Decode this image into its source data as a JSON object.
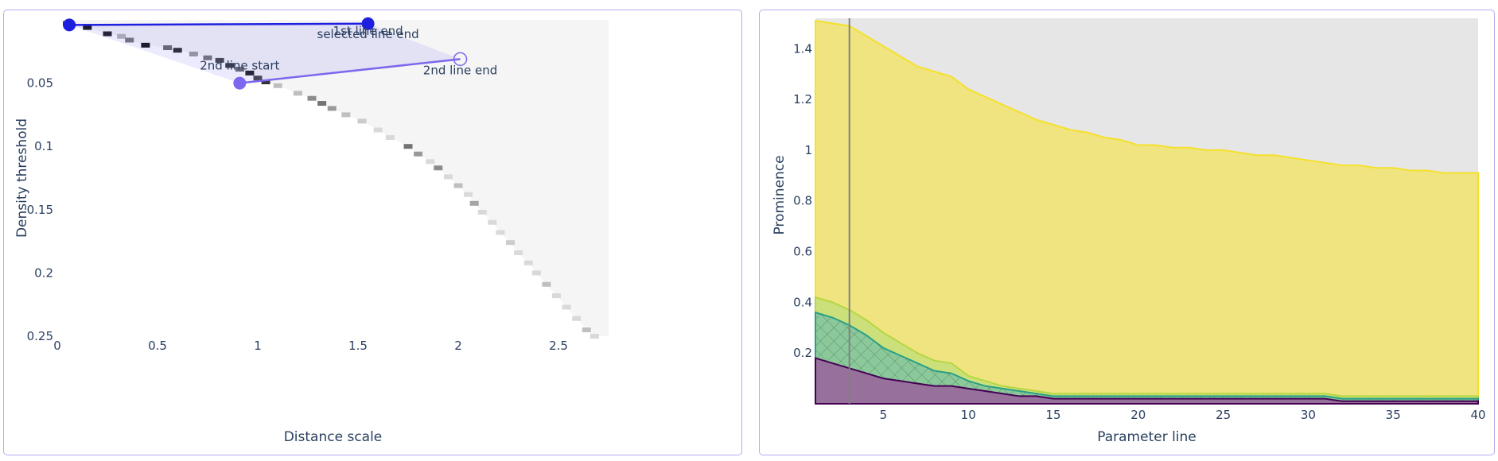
{
  "colors": {
    "panel_border": "#b4abf0",
    "handle_blue": "#1f1fe0",
    "handle_purple": "#7b68ee",
    "region_fill": "#ececfa",
    "yellow_fill": "#f0e481",
    "yellow_line": "#f5e12a",
    "grey_background": "#e6e6e6",
    "purple_fill": "#97709b",
    "green_fill": "#8cc99a",
    "vline": "#808080"
  },
  "left_chart": {
    "chart_data": {
      "type": "heatmap",
      "xlabel": "Distance scale",
      "ylabel": "Density threshold",
      "xlim": [
        0,
        2.75
      ],
      "ylim": [
        0.25,
        0
      ],
      "xticks": [
        "0",
        "0.5",
        "1",
        "1.5",
        "2",
        "2.5"
      ],
      "yticks": [
        "0.05",
        "0.1",
        "0.15",
        "0.2",
        "0.25"
      ],
      "frontier_intensity": [
        [
          0.05,
          0.003,
          0.9
        ],
        [
          0.15,
          0.006,
          0.95
        ],
        [
          0.25,
          0.011,
          0.9
        ],
        [
          0.32,
          0.013,
          0.3
        ],
        [
          0.36,
          0.016,
          0.55
        ],
        [
          0.44,
          0.02,
          0.95
        ],
        [
          0.55,
          0.022,
          0.6
        ],
        [
          0.6,
          0.024,
          0.85
        ],
        [
          0.68,
          0.027,
          0.4
        ],
        [
          0.75,
          0.03,
          0.55
        ],
        [
          0.81,
          0.032,
          0.75
        ],
        [
          0.86,
          0.036,
          0.8
        ],
        [
          0.91,
          0.039,
          0.6
        ],
        [
          0.96,
          0.042,
          0.9
        ],
        [
          1.0,
          0.046,
          0.75
        ],
        [
          1.04,
          0.049,
          0.8
        ],
        [
          1.1,
          0.052,
          0.25
        ],
        [
          1.2,
          0.058,
          0.25
        ],
        [
          1.27,
          0.062,
          0.45
        ],
        [
          1.32,
          0.066,
          0.55
        ],
        [
          1.37,
          0.07,
          0.4
        ],
        [
          1.44,
          0.075,
          0.25
        ],
        [
          1.52,
          0.08,
          0.2
        ],
        [
          1.6,
          0.087,
          0.15
        ],
        [
          1.66,
          0.093,
          0.15
        ],
        [
          1.75,
          0.1,
          0.55
        ],
        [
          1.8,
          0.106,
          0.4
        ],
        [
          1.86,
          0.112,
          0.15
        ],
        [
          1.9,
          0.117,
          0.45
        ],
        [
          1.95,
          0.124,
          0.15
        ],
        [
          2.0,
          0.131,
          0.25
        ],
        [
          2.05,
          0.138,
          0.15
        ],
        [
          2.08,
          0.145,
          0.35
        ],
        [
          2.12,
          0.152,
          0.15
        ],
        [
          2.17,
          0.16,
          0.15
        ],
        [
          2.21,
          0.168,
          0.15
        ],
        [
          2.26,
          0.176,
          0.2
        ],
        [
          2.3,
          0.184,
          0.15
        ],
        [
          2.35,
          0.192,
          0.15
        ],
        [
          2.39,
          0.2,
          0.15
        ],
        [
          2.44,
          0.209,
          0.25
        ],
        [
          2.49,
          0.218,
          0.15
        ],
        [
          2.54,
          0.227,
          0.15
        ],
        [
          2.59,
          0.236,
          0.15
        ],
        [
          2.64,
          0.245,
          0.25
        ],
        [
          2.68,
          0.25,
          0.15
        ]
      ],
      "lines": [
        {
          "name": "1st line",
          "start": [
            0.06,
            0.004
          ],
          "end": [
            1.55,
            0.003
          ]
        },
        {
          "name": "2nd line",
          "start": [
            0.91,
            0.05
          ],
          "end": [
            2.01,
            0.031
          ]
        }
      ],
      "annotations": [
        {
          "text": "1st line end",
          "x": 1.55,
          "y": 0.003
        },
        {
          "text": "selected line end",
          "x": 1.55,
          "y": 0.003
        },
        {
          "text": "2nd line start",
          "x": 0.91,
          "y": 0.05
        },
        {
          "text": "2nd line end",
          "x": 2.01,
          "y": 0.031
        }
      ]
    }
  },
  "right_chart": {
    "chart_data": {
      "type": "area",
      "xlabel": "Parameter line",
      "ylabel": "Prominence",
      "xlim": [
        1,
        40
      ],
      "ylim": [
        0,
        1.52
      ],
      "xticks": [
        "5",
        "10",
        "15",
        "20",
        "25",
        "30",
        "35",
        "40"
      ],
      "yticks": [
        "0.2",
        "0.4",
        "0.6",
        "0.8",
        "1",
        "1.2",
        "1.4"
      ],
      "selected_x": 3,
      "x": [
        1,
        2,
        3,
        4,
        5,
        6,
        7,
        8,
        9,
        10,
        11,
        12,
        13,
        14,
        15,
        16,
        17,
        18,
        19,
        20,
        21,
        22,
        23,
        24,
        25,
        26,
        27,
        28,
        29,
        30,
        31,
        32,
        33,
        34,
        35,
        36,
        37,
        38,
        39,
        40
      ],
      "series": [
        {
          "values": [
            1.51,
            1.5,
            1.49,
            1.45,
            1.41,
            1.37,
            1.33,
            1.31,
            1.29,
            1.24,
            1.21,
            1.18,
            1.15,
            1.12,
            1.1,
            1.08,
            1.07,
            1.05,
            1.04,
            1.02,
            1.02,
            1.01,
            1.01,
            1.0,
            1.0,
            0.99,
            0.98,
            0.98,
            0.97,
            0.96,
            0.95,
            0.94,
            0.94,
            0.93,
            0.93,
            0.92,
            0.92,
            0.91,
            0.91,
            0.91
          ]
        },
        {
          "values": [
            0.42,
            0.4,
            0.37,
            0.33,
            0.28,
            0.24,
            0.2,
            0.17,
            0.16,
            0.11,
            0.09,
            0.07,
            0.06,
            0.05,
            0.04,
            0.04,
            0.04,
            0.04,
            0.04,
            0.04,
            0.04,
            0.04,
            0.04,
            0.04,
            0.04,
            0.04,
            0.04,
            0.04,
            0.04,
            0.04,
            0.04,
            0.03,
            0.03,
            0.03,
            0.03,
            0.03,
            0.03,
            0.03,
            0.03,
            0.03
          ]
        },
        {
          "values": [
            0.36,
            0.34,
            0.31,
            0.27,
            0.22,
            0.19,
            0.16,
            0.13,
            0.12,
            0.09,
            0.07,
            0.06,
            0.05,
            0.04,
            0.03,
            0.03,
            0.03,
            0.03,
            0.03,
            0.03,
            0.03,
            0.03,
            0.03,
            0.03,
            0.03,
            0.03,
            0.03,
            0.03,
            0.03,
            0.03,
            0.03,
            0.02,
            0.02,
            0.02,
            0.02,
            0.02,
            0.02,
            0.02,
            0.02,
            0.02
          ]
        },
        {
          "values": [
            0.18,
            0.16,
            0.14,
            0.12,
            0.1,
            0.09,
            0.08,
            0.07,
            0.07,
            0.06,
            0.05,
            0.04,
            0.03,
            0.03,
            0.02,
            0.02,
            0.02,
            0.02,
            0.02,
            0.02,
            0.02,
            0.02,
            0.02,
            0.02,
            0.02,
            0.02,
            0.02,
            0.02,
            0.02,
            0.02,
            0.02,
            0.01,
            0.01,
            0.01,
            0.01,
            0.01,
            0.01,
            0.01,
            0.01,
            0.01
          ]
        }
      ]
    }
  }
}
